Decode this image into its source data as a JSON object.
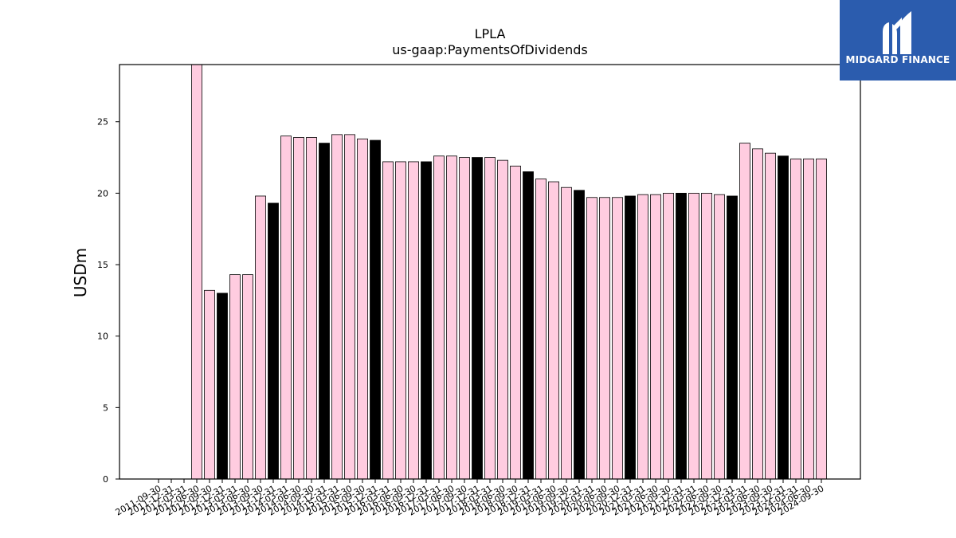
{
  "logo": {
    "text": "MIDGARD FINANCE"
  },
  "chart_data": {
    "type": "bar",
    "title": "LPLA",
    "subtitle": "us-gaap:PaymentsOfDividends",
    "xlabel": "",
    "ylabel": "USDm",
    "ylim": [
      0,
      29
    ],
    "yticks": [
      0,
      5,
      10,
      15,
      20,
      25
    ],
    "grid": false,
    "colors": {
      "quarter": "#ffcce0",
      "year_end": "#000000",
      "edge": "#000000"
    },
    "categories": [
      "2011-09-30",
      "2011-12-31",
      "2012-03-31",
      "2012-06-30",
      "2012-09-30",
      "2012-12-31",
      "2013-03-31",
      "2013-06-30",
      "2013-09-30",
      "2013-12-31",
      "2014-03-31",
      "2014-06-30",
      "2014-09-30",
      "2014-12-31",
      "2015-03-31",
      "2015-06-30",
      "2015-09-30",
      "2015-12-31",
      "2016-03-31",
      "2016-06-30",
      "2016-09-30",
      "2016-12-31",
      "2017-03-31",
      "2017-06-30",
      "2017-09-30",
      "2017-12-31",
      "2018-03-31",
      "2018-06-30",
      "2018-09-30",
      "2018-12-31",
      "2019-03-31",
      "2019-06-30",
      "2019-09-30",
      "2019-12-31",
      "2020-03-31",
      "2020-06-30",
      "2020-09-30",
      "2020-12-31",
      "2021-03-31",
      "2021-06-30",
      "2021-09-30",
      "2021-12-31",
      "2022-03-31",
      "2022-06-30",
      "2022-09-30",
      "2022-12-31",
      "2023-03-31",
      "2023-06-30",
      "2023-09-30",
      "2023-12-31",
      "2024-03-31",
      "2024-06-30",
      "2024-09-30"
    ],
    "values": [
      null,
      null,
      null,
      29.0,
      13.2,
      13.0,
      14.3,
      14.3,
      19.8,
      19.3,
      24.0,
      23.9,
      23.9,
      23.5,
      24.1,
      24.1,
      23.8,
      23.7,
      22.2,
      22.2,
      22.2,
      22.2,
      22.6,
      22.6,
      22.5,
      22.5,
      22.5,
      22.3,
      21.9,
      21.5,
      21.0,
      20.8,
      20.4,
      20.2,
      19.7,
      19.7,
      19.7,
      19.8,
      19.9,
      19.9,
      20.0,
      20.0,
      20.0,
      20.0,
      19.9,
      19.8,
      23.5,
      23.1,
      22.8,
      22.6,
      22.4,
      22.4,
      22.4
    ],
    "year_end_flags": [
      false,
      true,
      false,
      false,
      false,
      true,
      false,
      false,
      false,
      true,
      false,
      false,
      false,
      true,
      false,
      false,
      false,
      true,
      false,
      false,
      false,
      true,
      false,
      false,
      false,
      true,
      false,
      false,
      false,
      true,
      false,
      false,
      false,
      true,
      false,
      false,
      false,
      true,
      false,
      false,
      false,
      true,
      false,
      false,
      false,
      true,
      false,
      false,
      false,
      true,
      false,
      false,
      false
    ]
  }
}
